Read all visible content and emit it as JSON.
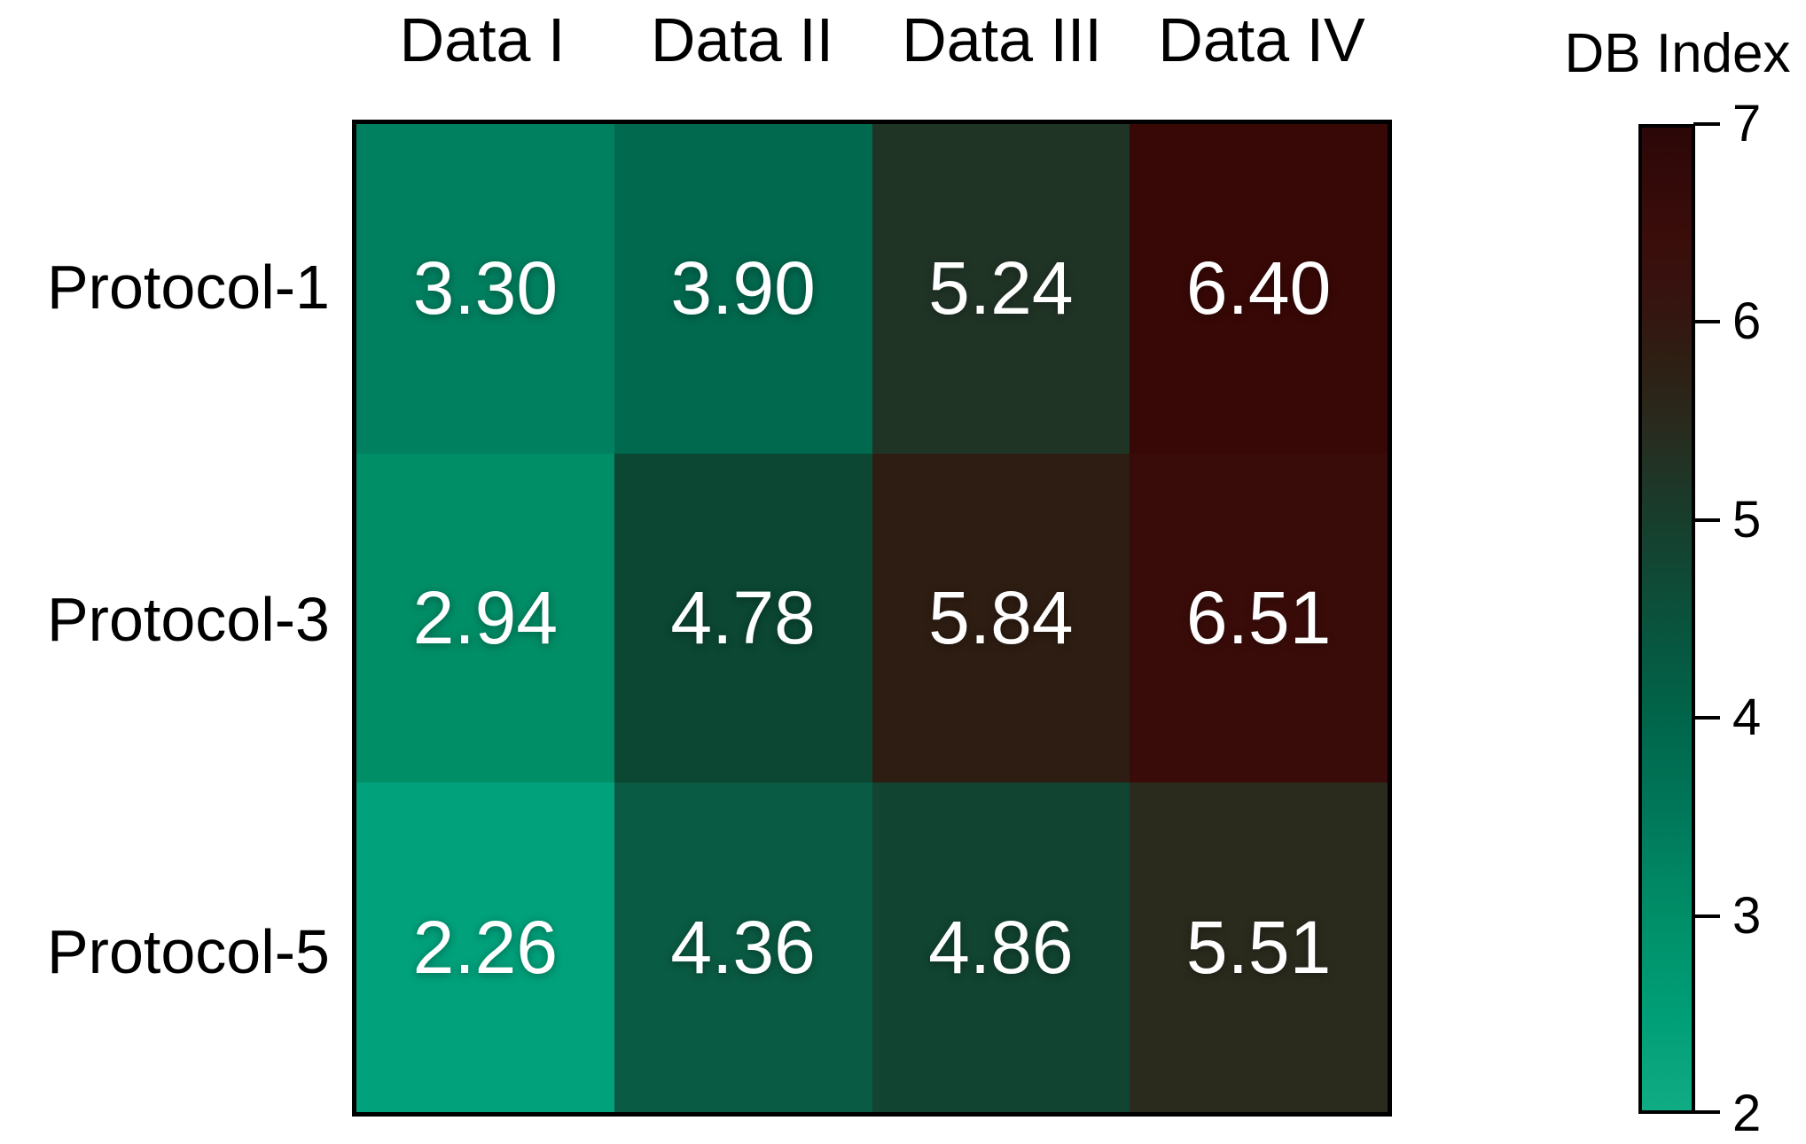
{
  "chart_data": {
    "type": "heatmap",
    "rows": [
      "Protocol-1",
      "Protocol-3",
      "Protocol-5"
    ],
    "columns": [
      "Data I",
      "Data II",
      "Data III",
      "Data IV"
    ],
    "values": [
      [
        3.3,
        3.9,
        5.24,
        6.4
      ],
      [
        2.94,
        4.78,
        5.84,
        6.51
      ],
      [
        2.26,
        4.36,
        4.86,
        5.51
      ]
    ],
    "value_labels": [
      [
        "3.30",
        "3.90",
        "5.24",
        "6.40"
      ],
      [
        "2.94",
        "4.78",
        "5.84",
        "6.51"
      ],
      [
        "2.26",
        "4.36",
        "4.86",
        "5.51"
      ]
    ],
    "cell_colors": [
      [
        "#00805F",
        "#00694E",
        "#203426",
        "#380806"
      ],
      [
        "#008E67",
        "#0B4733",
        "#2E1D12",
        "#3A0C09"
      ],
      [
        "#00A17B",
        "#0A5B43",
        "#114431",
        "#2A2A1D"
      ]
    ],
    "colorbar": {
      "title": "DB Index",
      "min": 2,
      "max": 7,
      "tick_labels": [
        "7",
        "6",
        "5",
        "4",
        "3",
        "2"
      ],
      "gradient_stops": [
        {
          "value": 2.0,
          "color": "#10AC84"
        },
        {
          "value": 2.5,
          "color": "#009E76"
        },
        {
          "value": 3.0,
          "color": "#008E67"
        },
        {
          "value": 3.5,
          "color": "#00785A"
        },
        {
          "value": 4.0,
          "color": "#00654A"
        },
        {
          "value": 4.5,
          "color": "#0A523C"
        },
        {
          "value": 5.0,
          "color": "#173E2D"
        },
        {
          "value": 5.25,
          "color": "#203426"
        },
        {
          "value": 5.5,
          "color": "#292A1D"
        },
        {
          "value": 5.85,
          "color": "#2F1D12"
        },
        {
          "value": 6.1,
          "color": "#361410"
        },
        {
          "value": 6.45,
          "color": "#3A0D0A"
        },
        {
          "value": 7.0,
          "color": "#2C0708"
        }
      ]
    },
    "grid": false,
    "legend_position": "right"
  },
  "colors": {
    "background": "#FFFFFF",
    "cell_value_text": "#FFFFFF",
    "axis_label_text": "#000000",
    "frame_border": "#000000"
  }
}
